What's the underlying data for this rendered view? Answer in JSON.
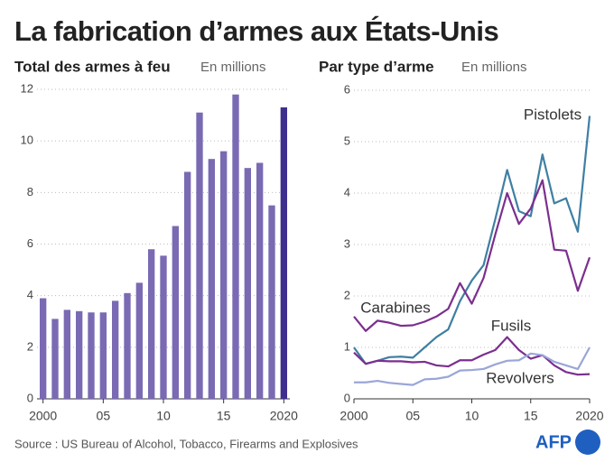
{
  "title": "La fabrication d’armes aux États-Unis",
  "source": "Source : US Bureau of Alcohol, Tobacco, Firearms and Explosives",
  "logo": "AFP",
  "chart_data": [
    {
      "type": "bar",
      "title": "Total des armes à feu",
      "subtitle": "En millions",
      "x": [
        2000,
        2001,
        2002,
        2003,
        2004,
        2005,
        2006,
        2007,
        2008,
        2009,
        2010,
        2011,
        2012,
        2013,
        2014,
        2015,
        2016,
        2017,
        2018,
        2019,
        2020
      ],
      "values": [
        3.9,
        3.1,
        3.45,
        3.4,
        3.35,
        3.35,
        3.8,
        4.1,
        4.5,
        5.8,
        5.55,
        6.7,
        8.8,
        11.1,
        9.3,
        9.6,
        11.8,
        8.95,
        9.15,
        7.5,
        11.3
      ],
      "colors": [
        "#7a6ab3",
        "#7a6ab3",
        "#7a6ab3",
        "#7a6ab3",
        "#7a6ab3",
        "#7a6ab3",
        "#7a6ab3",
        "#7a6ab3",
        "#7a6ab3",
        "#7a6ab3",
        "#7a6ab3",
        "#7a6ab3",
        "#7a6ab3",
        "#7a6ab3",
        "#7a6ab3",
        "#7a6ab3",
        "#7a6ab3",
        "#7a6ab3",
        "#7a6ab3",
        "#7a6ab3",
        "#3e2f8f"
      ],
      "xlim": [
        1999.5,
        2020.5
      ],
      "xticks": [
        {
          "value": 2000,
          "label": "2000"
        },
        {
          "value": 2005,
          "label": "05"
        },
        {
          "value": 2010,
          "label": "10"
        },
        {
          "value": 2015,
          "label": "15"
        },
        {
          "value": 2020,
          "label": "2020"
        }
      ],
      "ylim": [
        0,
        12
      ],
      "yticks": [
        0,
        2,
        4,
        6,
        8,
        10,
        12
      ],
      "grid": true
    },
    {
      "type": "line",
      "title": "Par type d’arme",
      "subtitle": "En millions",
      "x": [
        2000,
        2001,
        2002,
        2003,
        2004,
        2005,
        2006,
        2007,
        2008,
        2009,
        2010,
        2011,
        2012,
        2013,
        2014,
        2015,
        2016,
        2017,
        2018,
        2019,
        2020
      ],
      "series": [
        {
          "name": "Pistolets",
          "color": "#3f7fa3",
          "values": [
            1.0,
            0.68,
            0.74,
            0.81,
            0.82,
            0.8,
            1.0,
            1.2,
            1.35,
            1.9,
            2.3,
            2.6,
            3.5,
            4.45,
            3.65,
            3.55,
            4.75,
            3.8,
            3.9,
            3.25,
            5.5
          ]
        },
        {
          "name": "Carabines",
          "color": "#7b2f8f",
          "values": [
            1.6,
            1.32,
            1.52,
            1.48,
            1.42,
            1.43,
            1.5,
            1.6,
            1.75,
            2.25,
            1.85,
            2.35,
            3.2,
            4.0,
            3.4,
            3.7,
            4.25,
            2.9,
            2.88,
            2.1,
            2.75
          ]
        },
        {
          "name": "Fusils",
          "color": "#7b2f8f",
          "values": [
            0.9,
            0.68,
            0.74,
            0.73,
            0.73,
            0.71,
            0.72,
            0.65,
            0.63,
            0.75,
            0.75,
            0.86,
            0.95,
            1.2,
            0.95,
            0.78,
            0.85,
            0.65,
            0.52,
            0.47,
            0.48
          ]
        },
        {
          "name": "Revolvers",
          "color": "#9aa6d8",
          "values": [
            0.32,
            0.32,
            0.35,
            0.31,
            0.29,
            0.27,
            0.38,
            0.39,
            0.43,
            0.55,
            0.56,
            0.58,
            0.67,
            0.74,
            0.75,
            0.88,
            0.85,
            0.72,
            0.65,
            0.58,
            1.0
          ]
        }
      ],
      "xlim": [
        2000,
        2020
      ],
      "xticks": [
        {
          "value": 2000,
          "label": "2000"
        },
        {
          "value": 2005,
          "label": "05"
        },
        {
          "value": 2010,
          "label": "10"
        },
        {
          "value": 2015,
          "label": "15"
        },
        {
          "value": 2020,
          "label": "2020"
        }
      ],
      "ylim": [
        0,
        6
      ],
      "yticks": [
        0,
        1,
        2,
        3,
        4,
        5,
        6
      ],
      "grid": true
    }
  ]
}
